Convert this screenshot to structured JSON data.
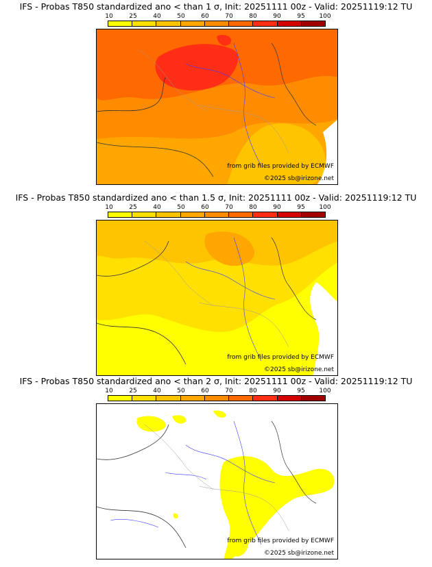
{
  "colorbar": {
    "ticks": [
      "10",
      "25",
      "40",
      "50",
      "60",
      "70",
      "80",
      "90",
      "95",
      "100"
    ],
    "colors": [
      "#ffff00",
      "#ffe000",
      "#ffc400",
      "#ffa600",
      "#ff8c00",
      "#ff6a00",
      "#ff2e14",
      "#d40000",
      "#a00000",
      "#6a0000"
    ]
  },
  "panels": [
    {
      "title": "IFS - Probas T850  standardized ano < than 1 σ, Init: 20251111 00z - Valid: 20251119:12 TU",
      "source_credit": "from grib files provided by ECMWF",
      "copyright": "©2025 sb@irizone.net",
      "field": "high"
    },
    {
      "title": "IFS - Probas T850  standardized ano < than 1.5 σ, Init: 20251111 00z - Valid: 20251119:12 TU",
      "source_credit": "from grib files provided by ECMWF",
      "copyright": "©2025 sb@irizone.net",
      "field": "mid"
    },
    {
      "title": "IFS - Probas T850  standardized ano < than 2 σ, Init: 20251111 00z - Valid: 20251119:12 TU",
      "source_credit": "from grib files provided by ECMWF",
      "copyright": "©2025 sb@irizone.net",
      "field": "low"
    }
  ]
}
